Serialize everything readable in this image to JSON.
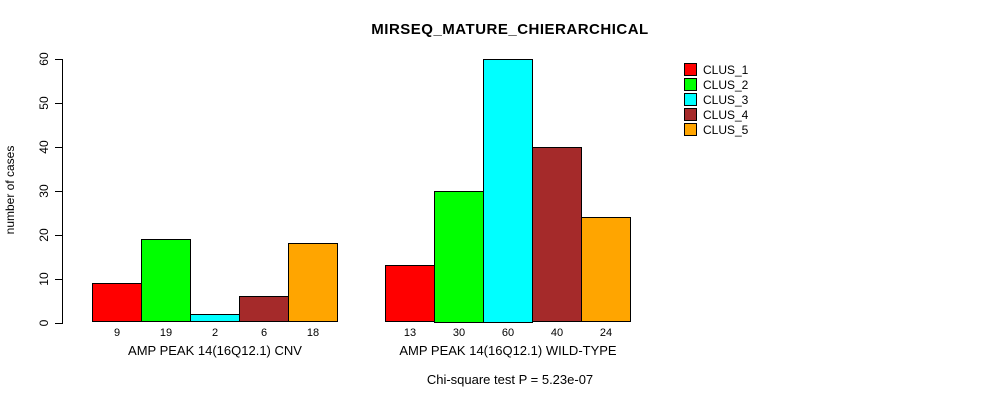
{
  "chart_data": {
    "type": "bar",
    "title": "MIRSEQ_MATURE_CHIERARCHICAL",
    "subtitle": "Chi-square test P = 5.23e-07",
    "ylabel": "number of cases",
    "xlabel": "",
    "ylim": [
      0,
      60
    ],
    "yticks": [
      0,
      10,
      20,
      30,
      40,
      50,
      60
    ],
    "grid": false,
    "legend_position": "topright",
    "bar_value_labels": true,
    "categories": [
      "AMP PEAK 14(16Q12.1) CNV",
      "AMP PEAK 14(16Q12.1) WILD-TYPE"
    ],
    "series": [
      {
        "name": "CLUS_1",
        "color": "#FF0000",
        "values": [
          9,
          13
        ]
      },
      {
        "name": "CLUS_2",
        "color": "#00FF00",
        "values": [
          19,
          30
        ]
      },
      {
        "name": "CLUS_3",
        "color": "#00FFFF",
        "values": [
          2,
          60
        ]
      },
      {
        "name": "CLUS_4",
        "color": "#A52A2A",
        "values": [
          6,
          40
        ]
      },
      {
        "name": "CLUS_5",
        "color": "#FFA500",
        "values": [
          18,
          24
        ]
      }
    ]
  }
}
